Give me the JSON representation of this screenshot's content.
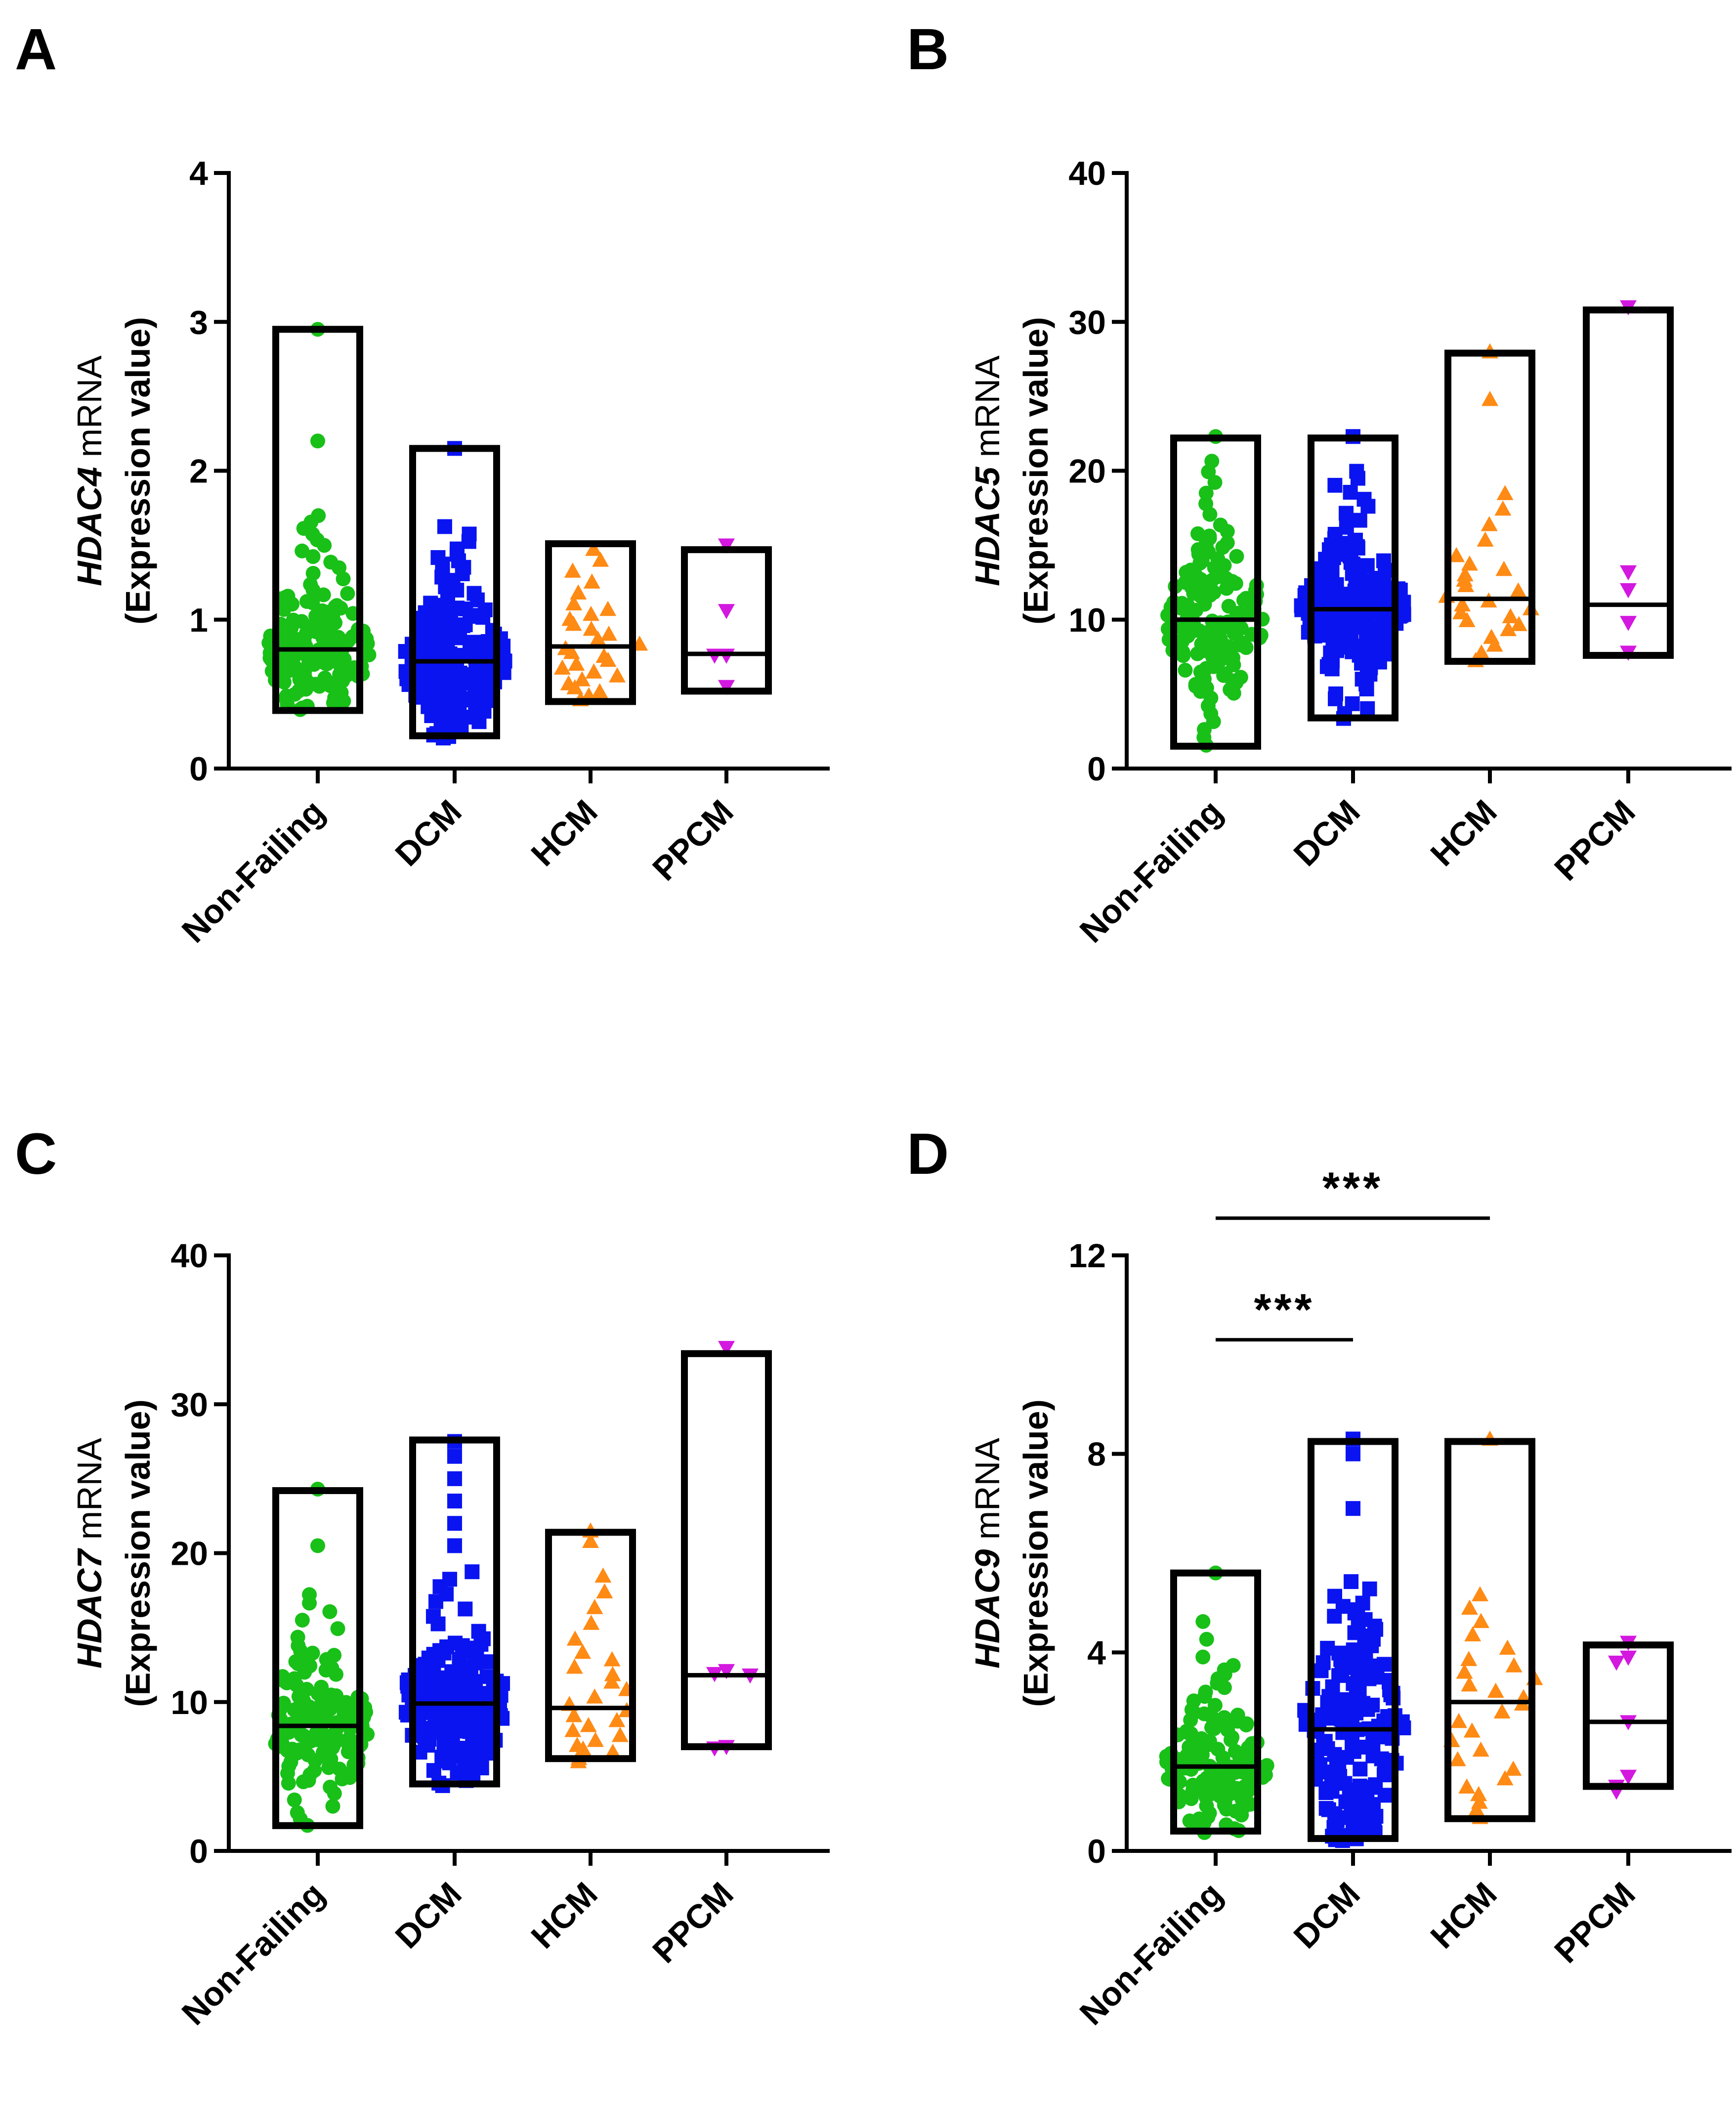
{
  "chart_data": [
    {
      "type": "floating-bar-scatter",
      "panel": "A",
      "gene": "HDAC4",
      "ylabel_suffix": "mRNA",
      "ylabel_line2": "(Expression value)",
      "ylim": [
        0,
        4
      ],
      "yticks": [
        0,
        1,
        2,
        3,
        4
      ],
      "categories": [
        "Non-Failing",
        "DCM",
        "HCM",
        "PPCM"
      ],
      "groups": [
        {
          "name": "Non-Failing",
          "min": 0.39,
          "max": 2.95,
          "median": 0.8,
          "n": 140,
          "seed": 11,
          "quantiles": [
            [
              0,
              0.39
            ],
            [
              0.1,
              0.55
            ],
            [
              0.3,
              0.68
            ],
            [
              0.5,
              0.8
            ],
            [
              0.7,
              0.93
            ],
            [
              0.9,
              1.18
            ],
            [
              0.98,
              1.6
            ],
            [
              1,
              1.72
            ]
          ],
          "extras": [
            2.2,
            2.95
          ]
        },
        {
          "name": "DCM",
          "min": 0.22,
          "max": 2.15,
          "median": 0.72,
          "n": 200,
          "seed": 12,
          "quantiles": [
            [
              0,
              0.2
            ],
            [
              0.1,
              0.4
            ],
            [
              0.3,
              0.58
            ],
            [
              0.5,
              0.72
            ],
            [
              0.7,
              0.85
            ],
            [
              0.9,
              1.1
            ],
            [
              0.98,
              1.45
            ],
            [
              1,
              1.65
            ]
          ],
          "extras": [
            2.15
          ]
        },
        {
          "name": "HCM",
          "min": 0.45,
          "max": 1.51,
          "median": 0.82,
          "n": 28,
          "seed": 13,
          "quantiles": [
            [
              0,
              0.45
            ],
            [
              0.2,
              0.6
            ],
            [
              0.5,
              0.82
            ],
            [
              0.8,
              1.1
            ],
            [
              1,
              1.51
            ]
          ],
          "extras": []
        },
        {
          "name": "PPCM",
          "min": 0.52,
          "max": 1.47,
          "median": 0.77,
          "n": 0,
          "seed": 14,
          "quantiles": [],
          "extras": [
            1.5,
            1.06,
            0.76,
            0.76,
            0.55
          ]
        }
      ],
      "significance": []
    },
    {
      "type": "floating-bar-scatter",
      "panel": "B",
      "gene": "HDAC5",
      "ylabel_suffix": "mRNA",
      "ylabel_line2": "(Expression value)",
      "ylim": [
        0,
        40
      ],
      "yticks": [
        0,
        10,
        20,
        30,
        40
      ],
      "categories": [
        "Non-Failing",
        "DCM",
        "HCM",
        "PPCM"
      ],
      "groups": [
        {
          "name": "Non-Failing",
          "min": 1.5,
          "max": 22.2,
          "median": 10.0,
          "n": 140,
          "seed": 21,
          "quantiles": [
            [
              0,
              1.3
            ],
            [
              0.05,
              5.0
            ],
            [
              0.2,
              7.5
            ],
            [
              0.5,
              10.0
            ],
            [
              0.8,
              12.8
            ],
            [
              0.95,
              16.0
            ],
            [
              1,
              21.0
            ]
          ],
          "extras": [
            22.3
          ]
        },
        {
          "name": "DCM",
          "min": 3.4,
          "max": 22.2,
          "median": 10.7,
          "n": 200,
          "seed": 22,
          "quantiles": [
            [
              0,
              3.2
            ],
            [
              0.05,
              6.5
            ],
            [
              0.2,
              8.8
            ],
            [
              0.5,
              10.5
            ],
            [
              0.8,
              12.3
            ],
            [
              0.95,
              15.5
            ],
            [
              1,
              20.2
            ]
          ],
          "extras": [
            22.3
          ]
        },
        {
          "name": "HCM",
          "min": 7.2,
          "max": 27.9,
          "median": 11.4,
          "n": 24,
          "seed": 23,
          "quantiles": [
            [
              0,
              7.0
            ],
            [
              0.2,
              9.5
            ],
            [
              0.5,
              11.4
            ],
            [
              0.8,
              14.0
            ],
            [
              1,
              19.0
            ]
          ],
          "extras": [
            28.0,
            24.8
          ]
        },
        {
          "name": "PPCM",
          "min": 7.6,
          "max": 30.8,
          "median": 11.0,
          "n": 0,
          "seed": 24,
          "quantiles": [],
          "extras": [
            31.0,
            13.2,
            12.0,
            9.8,
            7.8
          ]
        }
      ],
      "significance": []
    },
    {
      "type": "floating-bar-scatter",
      "panel": "C",
      "gene": "HDAC7",
      "ylabel_suffix": "mRNA",
      "ylabel_line2": "(Expression value)",
      "ylim": [
        0,
        40
      ],
      "yticks": [
        0,
        10,
        20,
        30,
        40
      ],
      "categories": [
        "Non-Failing",
        "DCM",
        "HCM",
        "PPCM"
      ],
      "groups": [
        {
          "name": "Non-Failing",
          "min": 1.7,
          "max": 24.2,
          "median": 8.4,
          "n": 140,
          "seed": 31,
          "quantiles": [
            [
              0,
              1.5
            ],
            [
              0.05,
              4.5
            ],
            [
              0.2,
              6.5
            ],
            [
              0.5,
              8.4
            ],
            [
              0.8,
              10.5
            ],
            [
              0.95,
              13.5
            ],
            [
              1,
              17.5
            ]
          ],
          "extras": [
            20.5,
            24.3
          ]
        },
        {
          "name": "DCM",
          "min": 4.5,
          "max": 27.6,
          "median": 9.9,
          "n": 200,
          "seed": 32,
          "quantiles": [
            [
              0,
              4.3
            ],
            [
              0.05,
              6.0
            ],
            [
              0.2,
              8.0
            ],
            [
              0.5,
              9.9
            ],
            [
              0.8,
              11.5
            ],
            [
              0.95,
              14.0
            ],
            [
              1,
              19.0
            ]
          ],
          "extras": [
            20.5,
            22.0,
            23.5,
            25.0,
            26.5,
            27.5
          ]
        },
        {
          "name": "HCM",
          "min": 6.2,
          "max": 21.4,
          "median": 9.6,
          "n": 26,
          "seed": 33,
          "quantiles": [
            [
              0,
              5.9
            ],
            [
              0.2,
              7.0
            ],
            [
              0.5,
              9.6
            ],
            [
              0.8,
              13.5
            ],
            [
              1,
              19.0
            ]
          ],
          "extras": [
            21.5,
            20.8
          ]
        },
        {
          "name": "PPCM",
          "min": 7.0,
          "max": 33.4,
          "median": 11.8,
          "n": 0,
          "seed": 34,
          "quantiles": [],
          "extras": [
            33.8,
            12.1,
            11.9,
            11.8,
            7.0,
            6.9
          ]
        }
      ],
      "significance": []
    },
    {
      "type": "floating-bar-scatter",
      "panel": "D",
      "gene": "HDAC9",
      "ylabel_suffix": "mRNA",
      "ylabel_line2": "(Expression value)",
      "ylim": [
        0,
        12
      ],
      "yticks": [
        0,
        4,
        8,
        12
      ],
      "categories": [
        "Non-Failing",
        "DCM",
        "HCM",
        "PPCM"
      ],
      "groups": [
        {
          "name": "Non-Failing",
          "min": 0.4,
          "max": 5.6,
          "median": 1.7,
          "n": 140,
          "seed": 41,
          "quantiles": [
            [
              0,
              0.35
            ],
            [
              0.1,
              0.9
            ],
            [
              0.3,
              1.35
            ],
            [
              0.5,
              1.7
            ],
            [
              0.7,
              2.1
            ],
            [
              0.9,
              2.8
            ],
            [
              0.98,
              3.8
            ],
            [
              1,
              4.8
            ]
          ],
          "extras": [
            5.6
          ]
        },
        {
          "name": "DCM",
          "min": 0.25,
          "max": 8.25,
          "median": 2.45,
          "n": 170,
          "seed": 42,
          "quantiles": [
            [
              0,
              0.2
            ],
            [
              0.1,
              0.5
            ],
            [
              0.3,
              1.4
            ],
            [
              0.5,
              2.4
            ],
            [
              0.7,
              3.0
            ],
            [
              0.9,
              4.1
            ],
            [
              0.98,
              5.0
            ],
            [
              1,
              5.5
            ]
          ],
          "extras": [
            6.9,
            8.0,
            8.3
          ]
        },
        {
          "name": "HCM",
          "min": 0.65,
          "max": 8.25,
          "median": 3.0,
          "n": 26,
          "seed": 43,
          "quantiles": [
            [
              0,
              0.6
            ],
            [
              0.2,
              1.4
            ],
            [
              0.5,
              2.9
            ],
            [
              0.8,
              3.9
            ],
            [
              1,
              5.3
            ]
          ],
          "extras": [
            8.3
          ]
        },
        {
          "name": "PPCM",
          "min": 1.3,
          "max": 4.15,
          "median": 2.6,
          "n": 0,
          "seed": 44,
          "quantiles": [],
          "extras": [
            4.2,
            3.9,
            3.8,
            2.6,
            1.5,
            1.3,
            1.2
          ]
        }
      ],
      "significance": [
        {
          "from": "Non-Failing",
          "to": "DCM",
          "y": 10.3,
          "label": "***"
        },
        {
          "from": "Non-Failing",
          "to": "HCM",
          "y": 12.75,
          "label": "***"
        }
      ]
    }
  ],
  "colors": {
    "Non-Failing": "#18c018",
    "DCM": "#0a14f0",
    "HCM": "#ff8a14",
    "PPCM": "#d318e0",
    "axis": "#000000"
  },
  "markers": {
    "Non-Failing": "circle",
    "DCM": "square",
    "HCM": "triangle-up",
    "PPCM": "triangle-down"
  }
}
